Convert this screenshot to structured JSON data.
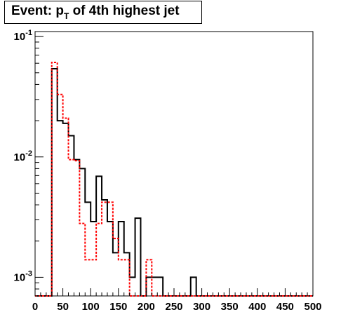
{
  "title": {
    "prefix": "Event: p",
    "subscript": "T",
    "suffix": " of 4th highest jet"
  },
  "chart_data": {
    "type": "histogram",
    "x": {
      "min": 0,
      "max": 500,
      "bin_width": 10,
      "ticks": [
        0,
        50,
        100,
        150,
        200,
        250,
        300,
        350,
        400,
        450,
        500
      ],
      "tick_labels": [
        "0",
        "50",
        "100",
        "150",
        "200",
        "250",
        "300",
        "350",
        "400",
        "450",
        "500"
      ]
    },
    "y": {
      "scale": "log",
      "min": 0.0007,
      "max": 0.11,
      "ticks": [
        0.001,
        0.01,
        0.1
      ],
      "tick_labels": [
        {
          "base": "10",
          "exp": "-3"
        },
        {
          "base": "10",
          "exp": "-2"
        },
        {
          "base": "10",
          "exp": "-1"
        }
      ]
    },
    "series": [
      {
        "style": "solid",
        "color": "#000000",
        "bins": [
          [
            30,
            0.054
          ],
          [
            40,
            0.02
          ],
          [
            50,
            0.019
          ],
          [
            60,
            0.015
          ],
          [
            70,
            0.0095
          ],
          [
            80,
            0.008
          ],
          [
            90,
            0.0042
          ],
          [
            100,
            0.0029
          ],
          [
            110,
            0.0069
          ],
          [
            120,
            0.0044
          ],
          [
            130,
            0.0029
          ],
          [
            140,
            0.0016
          ],
          [
            150,
            0.0029
          ],
          [
            160,
            0.0016
          ],
          [
            170,
            0.001
          ],
          [
            180,
            0.0031
          ],
          [
            200,
            0.001
          ],
          [
            210,
            0.001
          ],
          [
            220,
            0.001
          ],
          [
            280,
            0.001
          ]
        ]
      },
      {
        "style": "dashed",
        "color": "#ff0000",
        "bins": [
          [
            30,
            0.061
          ],
          [
            40,
            0.033
          ],
          [
            50,
            0.021
          ],
          [
            60,
            0.0095
          ],
          [
            70,
            0.0093
          ],
          [
            80,
            0.0028
          ],
          [
            90,
            0.0014
          ],
          [
            100,
            0.0014
          ],
          [
            110,
            0.0028
          ],
          [
            120,
            0.0042
          ],
          [
            130,
            0.0042
          ],
          [
            140,
            0.0021
          ],
          [
            150,
            0.0014
          ],
          [
            160,
            0.0014
          ],
          [
            200,
            0.0014
          ]
        ]
      }
    ]
  }
}
